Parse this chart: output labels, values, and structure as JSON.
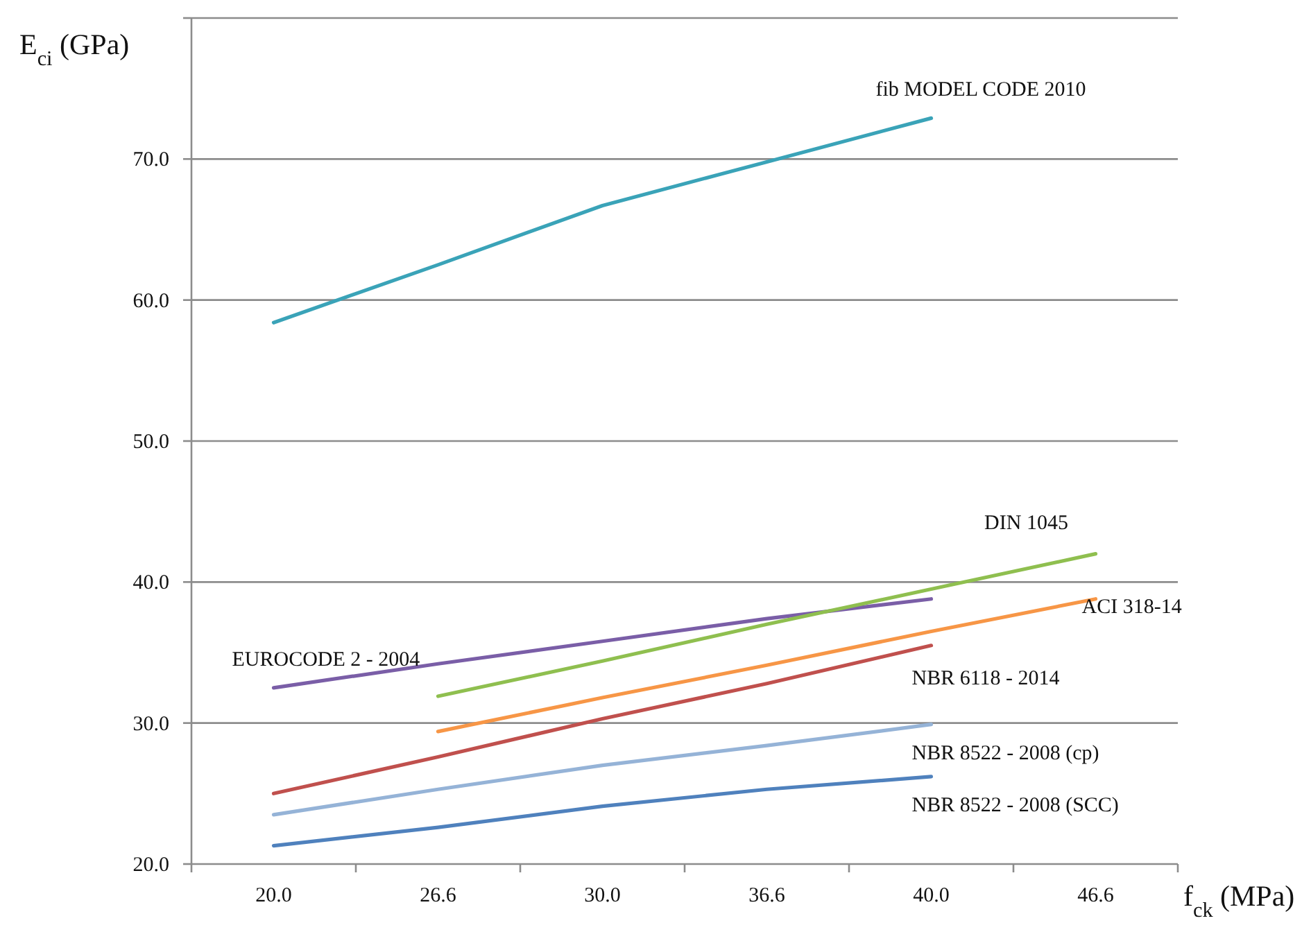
{
  "chart_data": {
    "type": "line",
    "xlabel": "f$_{ck}$ (MPa)",
    "ylabel": "E$_{ci}$ (GPa)",
    "categories": [
      "20.0",
      "26.6",
      "30.0",
      "36.6",
      "40.0",
      "46.6"
    ],
    "series": [
      {
        "name": "fib MODEL CODE 2010",
        "color": "#3aa3b8",
        "values": [
          58.4,
          62.5,
          66.7,
          69.8,
          72.9,
          null
        ]
      },
      {
        "name": "EUROCODE 2 - 2004",
        "color": "#7a5ea7",
        "values": [
          32.5,
          34.2,
          35.8,
          37.4,
          38.8,
          null
        ]
      },
      {
        "name": "DIN 1045",
        "color": "#8fbf4f",
        "values": [
          null,
          31.9,
          34.4,
          37.0,
          39.5,
          42.0
        ]
      },
      {
        "name": "ACI 318-14",
        "color": "#f79646",
        "values": [
          null,
          29.4,
          31.8,
          34.1,
          36.5,
          38.8
        ]
      },
      {
        "name": "NBR 6118 - 2014",
        "color": "#c0504d",
        "values": [
          25.0,
          27.6,
          30.3,
          32.8,
          35.5,
          null
        ]
      },
      {
        "name": "NBR 8522 - 2008 (cp)",
        "color": "#95b3d7",
        "values": [
          23.5,
          25.3,
          27.0,
          28.4,
          29.9,
          null
        ]
      },
      {
        "name": "NBR 8522 - 2008 (SCC)",
        "color": "#4f81bd",
        "values": [
          21.3,
          22.6,
          24.1,
          25.3,
          26.2,
          null
        ]
      }
    ],
    "ylim": [
      20,
      80
    ],
    "yticks": [
      {
        "value": 20,
        "label": "20.0"
      },
      {
        "value": 30,
        "label": "30.0"
      },
      {
        "value": 40,
        "label": "40.0"
      },
      {
        "value": 50,
        "label": "50.0"
      },
      {
        "value": 60,
        "label": "60.0"
      },
      {
        "value": 70,
        "label": "70.0"
      },
      {
        "value": 80,
        "label": null
      }
    ],
    "grid": "y",
    "marker": "none",
    "line_style": "solid"
  }
}
